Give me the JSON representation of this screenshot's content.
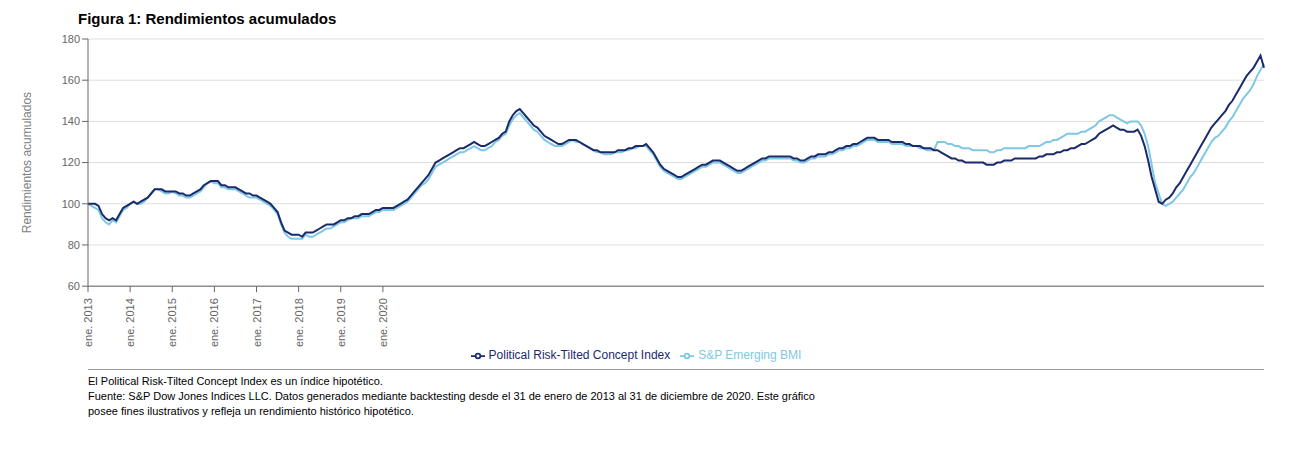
{
  "chart_data": {
    "type": "line",
    "title": "Figura 1: Rendimientos acumulados",
    "y_label": "Rendimientos acumulados",
    "annotations": [
      "El Political Risk-Tilted Concept Index es un índice hipotético.",
      "Fuente: S&P Dow Jones Indices LLC. Datos generados mediante backtesting desde el 31 de enero de 2013 al 31 de diciembre de 2020. Este gráfico",
      "posee fines ilustrativos y refleja un rendimiento histórico hipotético."
    ],
    "ylim": [
      60,
      180
    ],
    "yticks": [
      60,
      80,
      100,
      120,
      140,
      160,
      180
    ],
    "grid": true,
    "legend": "bottom",
    "categories": [
      "ene. 2013",
      null,
      null,
      null,
      null,
      null,
      null,
      null,
      null,
      null,
      null,
      null,
      "ene. 2014",
      null,
      null,
      null,
      null,
      null,
      null,
      null,
      null,
      null,
      null,
      null,
      "ene. 2015",
      null,
      null,
      null,
      null,
      null,
      null,
      null,
      null,
      null,
      null,
      null,
      "ene. 2016",
      null,
      null,
      null,
      null,
      null,
      null,
      null,
      null,
      null,
      null,
      null,
      "ene. 2017",
      null,
      null,
      null,
      null,
      null,
      null,
      null,
      null,
      null,
      null,
      null,
      "ene. 2018",
      null,
      null,
      null,
      null,
      null,
      null,
      null,
      null,
      null,
      null,
      null,
      "ene. 2019",
      null,
      null,
      null,
      null,
      null,
      null,
      null,
      null,
      null,
      null,
      null,
      "ene. 2020",
      null,
      null,
      null,
      null,
      null,
      null,
      null,
      null,
      null,
      null,
      null,
      null,
      null,
      null,
      null,
      null,
      null,
      null,
      null,
      null,
      null,
      null,
      null,
      null,
      null,
      null,
      null,
      null,
      null,
      null,
      null,
      null,
      null,
      null,
      null,
      null,
      null,
      null,
      null,
      null,
      null,
      null,
      null,
      null,
      null,
      null,
      null,
      null,
      null,
      null,
      null,
      null,
      null,
      null,
      null,
      null,
      null,
      null,
      null,
      null,
      null,
      null,
      null,
      null,
      null,
      null,
      null,
      null,
      null,
      null,
      null,
      null,
      null,
      null,
      null,
      null,
      null,
      null,
      null,
      null,
      null,
      null,
      null,
      null,
      null,
      null,
      null,
      null,
      null,
      null,
      null,
      null,
      null,
      null,
      null,
      null,
      null,
      null,
      null,
      null,
      null,
      null,
      null,
      null,
      null,
      null,
      null,
      null,
      null,
      null,
      null,
      null,
      null,
      null,
      null,
      null,
      null,
      null,
      null,
      null,
      null,
      null,
      null,
      null,
      null,
      null,
      null,
      null,
      null,
      null,
      null,
      null,
      null,
      null,
      null,
      null,
      null,
      null,
      null,
      null,
      null,
      null,
      null,
      null,
      null,
      null,
      null,
      null,
      null,
      null,
      null,
      null,
      null,
      null,
      null,
      null,
      null,
      null,
      null,
      null,
      null,
      null,
      null,
      null,
      null,
      null,
      null,
      null,
      null,
      null,
      null,
      null,
      null,
      null,
      null,
      null,
      null,
      null,
      null,
      null,
      null,
      null,
      null,
      null,
      null,
      null,
      null,
      null,
      null,
      null,
      null,
      null,
      null,
      null,
      null,
      null,
      null,
      null,
      null,
      null,
      null,
      null,
      null,
      null,
      null,
      null,
      null,
      null,
      null,
      null,
      null,
      null,
      null,
      null,
      null,
      null,
      null,
      null,
      null,
      null,
      null,
      null,
      null,
      null,
      null,
      null,
      null,
      null,
      null,
      null,
      null,
      null,
      null,
      null,
      null,
      null,
      null,
      null,
      null,
      null,
      null,
      null,
      null,
      null,
      null,
      null,
      null,
      null,
      null,
      null,
      null
    ],
    "series": [
      {
        "name": "S&P Emerging BMI",
        "color": "#7EC8E3",
        "values": [
          100,
          99,
          98,
          97,
          93,
          91,
          90,
          92,
          91,
          94,
          97,
          98,
          100,
          101,
          100,
          100,
          101,
          103,
          105,
          107,
          107,
          106,
          105,
          105,
          106,
          105,
          104,
          104,
          103,
          103,
          104,
          105,
          106,
          108,
          110,
          111,
          110,
          110,
          108,
          108,
          107,
          107,
          107,
          106,
          105,
          104,
          103,
          103,
          103,
          102,
          101,
          100,
          99,
          97,
          95,
          90,
          86,
          84,
          83,
          83,
          83,
          83,
          85,
          84,
          84,
          85,
          86,
          87,
          88,
          88,
          89,
          90,
          91,
          91,
          92,
          93,
          93,
          93,
          94,
          94,
          94,
          95,
          96,
          96,
          97,
          97,
          97,
          97,
          98,
          99,
          100,
          101,
          103,
          105,
          107,
          109,
          110,
          112,
          115,
          118,
          119,
          120,
          121,
          122,
          123,
          124,
          125,
          125,
          126,
          127,
          128,
          127,
          126,
          126,
          127,
          128,
          130,
          131,
          133,
          134,
          138,
          141,
          143,
          144,
          142,
          140,
          138,
          136,
          135,
          133,
          131,
          130,
          129,
          128,
          128,
          128,
          129,
          130,
          131,
          130,
          130,
          129,
          128,
          127,
          126,
          125,
          125,
          124,
          124,
          124,
          125,
          125,
          125,
          126,
          126,
          127,
          127,
          128,
          128,
          128,
          126,
          124,
          121,
          118,
          116,
          115,
          114,
          113,
          112,
          112,
          113,
          114,
          115,
          116,
          117,
          118,
          118,
          119,
          120,
          120,
          120,
          119,
          118,
          117,
          116,
          115,
          115,
          116,
          117,
          118,
          119,
          120,
          121,
          121,
          122,
          122,
          122,
          122,
          122,
          122,
          122,
          121,
          121,
          120,
          120,
          121,
          122,
          122,
          123,
          123,
          123,
          124,
          124,
          125,
          126,
          126,
          127,
          127,
          128,
          128,
          129,
          130,
          131,
          131,
          131,
          130,
          130,
          130,
          130,
          129,
          129,
          129,
          129,
          128,
          128,
          128,
          128,
          127,
          127,
          126,
          126,
          126,
          130,
          130,
          130,
          129,
          129,
          128,
          128,
          127,
          127,
          127,
          126,
          126,
          126,
          126,
          126,
          125,
          125,
          126,
          126,
          127,
          127,
          127,
          127,
          127,
          127,
          127,
          128,
          128,
          128,
          128,
          129,
          130,
          130,
          131,
          131,
          132,
          133,
          134,
          134,
          134,
          134,
          135,
          135,
          136,
          137,
          138,
          140,
          141,
          142,
          143,
          143,
          142,
          141,
          140,
          139,
          140,
          140,
          140,
          138,
          134,
          128,
          119,
          110,
          105,
          100,
          99,
          100,
          101,
          103,
          105,
          107,
          110,
          113,
          115,
          118,
          121,
          124,
          127,
          130,
          132,
          133,
          135,
          137,
          140,
          142,
          145,
          148,
          151,
          153,
          155,
          158,
          162,
          165,
          168
        ]
      },
      {
        "name": "Political Risk-Tilted Concept Index",
        "color": "#1B2A6B",
        "values": [
          100,
          100,
          100,
          99,
          95,
          93,
          92,
          93,
          92,
          95,
          98,
          99,
          100,
          101,
          100,
          101,
          102,
          103,
          105,
          107,
          107,
          107,
          106,
          106,
          106,
          106,
          105,
          105,
          104,
          104,
          105,
          106,
          107,
          109,
          110,
          111,
          111,
          111,
          109,
          109,
          108,
          108,
          108,
          107,
          106,
          105,
          105,
          104,
          104,
          103,
          102,
          101,
          100,
          98,
          96,
          91,
          87,
          86,
          85,
          85,
          85,
          84,
          86,
          86,
          86,
          87,
          88,
          89,
          90,
          90,
          90,
          91,
          92,
          92,
          93,
          93,
          94,
          94,
          95,
          95,
          95,
          96,
          97,
          97,
          98,
          98,
          98,
          98,
          99,
          100,
          101,
          102,
          104,
          106,
          108,
          110,
          112,
          114,
          117,
          120,
          121,
          122,
          123,
          124,
          125,
          126,
          127,
          127,
          128,
          129,
          130,
          129,
          128,
          128,
          129,
          130,
          131,
          132,
          134,
          135,
          140,
          143,
          145,
          146,
          144,
          142,
          140,
          138,
          137,
          135,
          133,
          132,
          131,
          130,
          129,
          129,
          130,
          131,
          131,
          131,
          130,
          129,
          128,
          127,
          126,
          126,
          125,
          125,
          125,
          125,
          125,
          126,
          126,
          126,
          127,
          127,
          128,
          128,
          128,
          129,
          127,
          125,
          122,
          119,
          117,
          116,
          115,
          114,
          113,
          113,
          114,
          115,
          116,
          117,
          118,
          119,
          119,
          120,
          121,
          121,
          121,
          120,
          119,
          118,
          117,
          116,
          116,
          117,
          118,
          119,
          120,
          121,
          122,
          122,
          123,
          123,
          123,
          123,
          123,
          123,
          123,
          122,
          122,
          121,
          121,
          122,
          123,
          123,
          124,
          124,
          124,
          125,
          125,
          126,
          127,
          127,
          128,
          128,
          129,
          129,
          130,
          131,
          132,
          132,
          132,
          131,
          131,
          131,
          131,
          130,
          130,
          130,
          130,
          129,
          129,
          128,
          128,
          128,
          127,
          127,
          127,
          126,
          126,
          125,
          124,
          123,
          122,
          122,
          121,
          121,
          120,
          120,
          120,
          120,
          120,
          120,
          119,
          119,
          119,
          120,
          120,
          121,
          121,
          121,
          122,
          122,
          122,
          122,
          122,
          122,
          122,
          123,
          123,
          124,
          124,
          124,
          125,
          125,
          126,
          126,
          127,
          127,
          128,
          129,
          129,
          130,
          131,
          132,
          134,
          135,
          136,
          137,
          138,
          137,
          136,
          136,
          135,
          135,
          135,
          136,
          133,
          128,
          121,
          113,
          107,
          101,
          100,
          102,
          103,
          105,
          108,
          110,
          113,
          116,
          119,
          122,
          125,
          128,
          131,
          134,
          137,
          139,
          141,
          143,
          145,
          148,
          150,
          153,
          156,
          159,
          162,
          164,
          166,
          169,
          172,
          166
        ]
      }
    ]
  }
}
